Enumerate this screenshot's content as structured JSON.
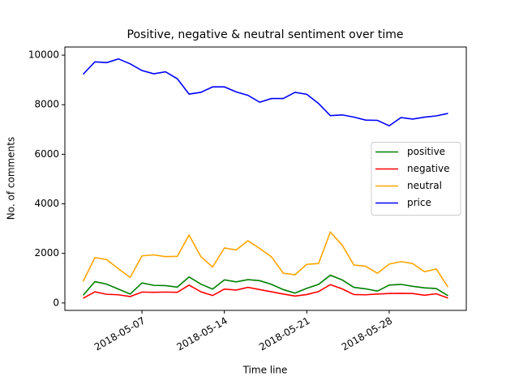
{
  "chart_data": {
    "type": "line",
    "title": "Positive, negative & neutral sentiment over time",
    "xlabel": "Time line",
    "ylabel": "No. of comments",
    "x": [
      "2018-05-02",
      "2018-05-03",
      "2018-05-04",
      "2018-05-05",
      "2018-05-06",
      "2018-05-07",
      "2018-05-08",
      "2018-05-09",
      "2018-05-10",
      "2018-05-11",
      "2018-05-12",
      "2018-05-13",
      "2018-05-14",
      "2018-05-15",
      "2018-05-16",
      "2018-05-17",
      "2018-05-18",
      "2018-05-19",
      "2018-05-20",
      "2018-05-21",
      "2018-05-22",
      "2018-05-23",
      "2018-05-24",
      "2018-05-25",
      "2018-05-26",
      "2018-05-27",
      "2018-05-28",
      "2018-05-29",
      "2018-05-30",
      "2018-05-31",
      "2018-06-01",
      "2018-06-02"
    ],
    "series": [
      {
        "name": "positive",
        "color": "green",
        "values": [
          310,
          860,
          760,
          560,
          360,
          810,
          710,
          700,
          640,
          1050,
          760,
          560,
          930,
          850,
          940,
          900,
          750,
          540,
          400,
          590,
          750,
          1120,
          930,
          630,
          570,
          480,
          720,
          750,
          670,
          610,
          580,
          290
        ]
      },
      {
        "name": "negative",
        "color": "red",
        "values": [
          190,
          450,
          350,
          330,
          260,
          440,
          430,
          440,
          430,
          720,
          450,
          300,
          560,
          520,
          630,
          540,
          450,
          360,
          280,
          340,
          460,
          740,
          570,
          340,
          330,
          360,
          380,
          390,
          380,
          310,
          370,
          200
        ]
      },
      {
        "name": "neutral",
        "color": "orange",
        "values": [
          870,
          1830,
          1750,
          1380,
          1030,
          1900,
          1940,
          1870,
          1880,
          2740,
          1870,
          1450,
          2220,
          2140,
          2510,
          2200,
          1860,
          1200,
          1140,
          1560,
          1590,
          2860,
          2340,
          1530,
          1480,
          1200,
          1570,
          1670,
          1590,
          1260,
          1370,
          640
        ]
      },
      {
        "name": "price",
        "color": "blue",
        "values": [
          9230,
          9730,
          9700,
          9850,
          9650,
          9380,
          9250,
          9330,
          9050,
          8430,
          8500,
          8720,
          8720,
          8520,
          8380,
          8100,
          8250,
          8250,
          8500,
          8420,
          8050,
          7560,
          7590,
          7500,
          7380,
          7370,
          7150,
          7480,
          7420,
          7500,
          7550,
          7650
        ]
      }
    ],
    "xlim": [
      "2018-04-30T10:48:00Z",
      "2018-06-03T13:12:00Z"
    ],
    "xticks": [
      "2018-05-07",
      "2018-05-14",
      "2018-05-21",
      "2018-05-28"
    ],
    "ylim": [
      -300,
      10330
    ],
    "yticks": [
      0,
      2000,
      4000,
      6000,
      8000,
      10000
    ],
    "legend": "center right"
  }
}
